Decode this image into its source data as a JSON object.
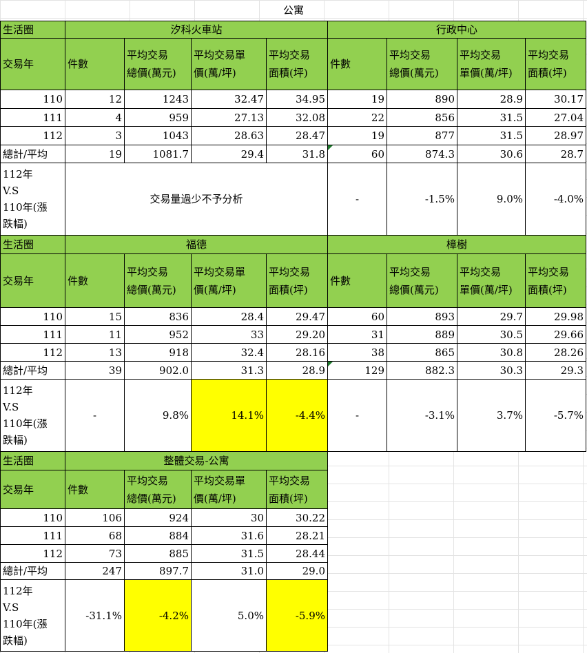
{
  "title": "公寓",
  "colors": {
    "header_green": "#92d050",
    "highlight_yellow": "#ffff00"
  },
  "row_label_header": "生活圈",
  "year_header": "交易年",
  "row_labels": [
    "110",
    "111",
    "112",
    "總計/平均",
    "112年\nV.S\n110年(漲\n跌幅)"
  ],
  "sections": [
    {
      "left": {
        "name": "汐科火車站",
        "headers": [
          "件數",
          "平均交易\n總價(萬元)",
          "平均交易單\n價(萬/坪)",
          "平均交易\n面積(坪)"
        ],
        "rows": [
          [
            "12",
            "1243",
            "32.47",
            "34.95"
          ],
          [
            "4",
            "959",
            "27.13",
            "32.08"
          ],
          [
            "3",
            "1043",
            "28.63",
            "28.47"
          ],
          [
            "19",
            "1081.7",
            "29.4",
            "31.8"
          ]
        ],
        "note": "交易量過少不予分析",
        "change": null,
        "highlight": [
          false,
          false,
          false,
          false
        ]
      },
      "right": {
        "name": "行政中心",
        "headers": [
          "件數",
          "平均交易\n總價(萬元)",
          "平均交易\n單價(萬/坪)",
          "平均交易\n面積(坪)"
        ],
        "rows": [
          [
            "19",
            "890",
            "28.9",
            "30.17"
          ],
          [
            "22",
            "856",
            "31.5",
            "27.04"
          ],
          [
            "19",
            "877",
            "31.5",
            "28.97"
          ],
          [
            "60",
            "874.3",
            "30.6",
            "28.7"
          ]
        ],
        "change": [
          "-",
          "-1.5%",
          "9.0%",
          "-4.0%"
        ],
        "highlight": [
          false,
          false,
          false,
          false
        ]
      }
    },
    {
      "left": {
        "name": "福德",
        "headers": [
          "件數",
          "平均交易\n總價(萬元)",
          "平均交易單\n價(萬/坪)",
          "平均交易\n面積(坪)"
        ],
        "rows": [
          [
            "15",
            "836",
            "28.4",
            "29.47"
          ],
          [
            "11",
            "952",
            "33",
            "29.20"
          ],
          [
            "13",
            "918",
            "32.4",
            "28.16"
          ],
          [
            "39",
            "902.0",
            "31.3",
            "28.9"
          ]
        ],
        "change": [
          "-",
          "9.8%",
          "14.1%",
          "-4.4%"
        ],
        "highlight": [
          false,
          false,
          true,
          true
        ]
      },
      "right": {
        "name": "樟樹",
        "headers": [
          "件數",
          "平均交易\n總價(萬元)",
          "平均交易\n單價(萬/坪)",
          "平均交易\n面積(坪)"
        ],
        "rows": [
          [
            "60",
            "893",
            "29.7",
            "29.98"
          ],
          [
            "31",
            "889",
            "30.5",
            "29.66"
          ],
          [
            "38",
            "865",
            "30.8",
            "28.26"
          ],
          [
            "129",
            "882.3",
            "30.3",
            "29.3"
          ]
        ],
        "change": [
          "-",
          "-3.1%",
          "3.7%",
          "-5.7%"
        ],
        "highlight": [
          false,
          false,
          false,
          false
        ]
      }
    },
    {
      "left": {
        "name": "整體交易-公寓",
        "headers": [
          "件數",
          "平均交易\n總價(萬元)",
          "平均交易單\n價(萬/坪)",
          "平均交易\n面積(坪)"
        ],
        "rows": [
          [
            "106",
            "924",
            "30",
            "30.22"
          ],
          [
            "68",
            "884",
            "31.6",
            "28.21"
          ],
          [
            "73",
            "885",
            "31.5",
            "28.44"
          ],
          [
            "247",
            "897.7",
            "31.0",
            "29.0"
          ]
        ],
        "change": [
          "-31.1%",
          "-4.2%",
          "5.0%",
          "-5.9%"
        ],
        "highlight": [
          false,
          true,
          false,
          true
        ]
      },
      "right": null
    }
  ]
}
